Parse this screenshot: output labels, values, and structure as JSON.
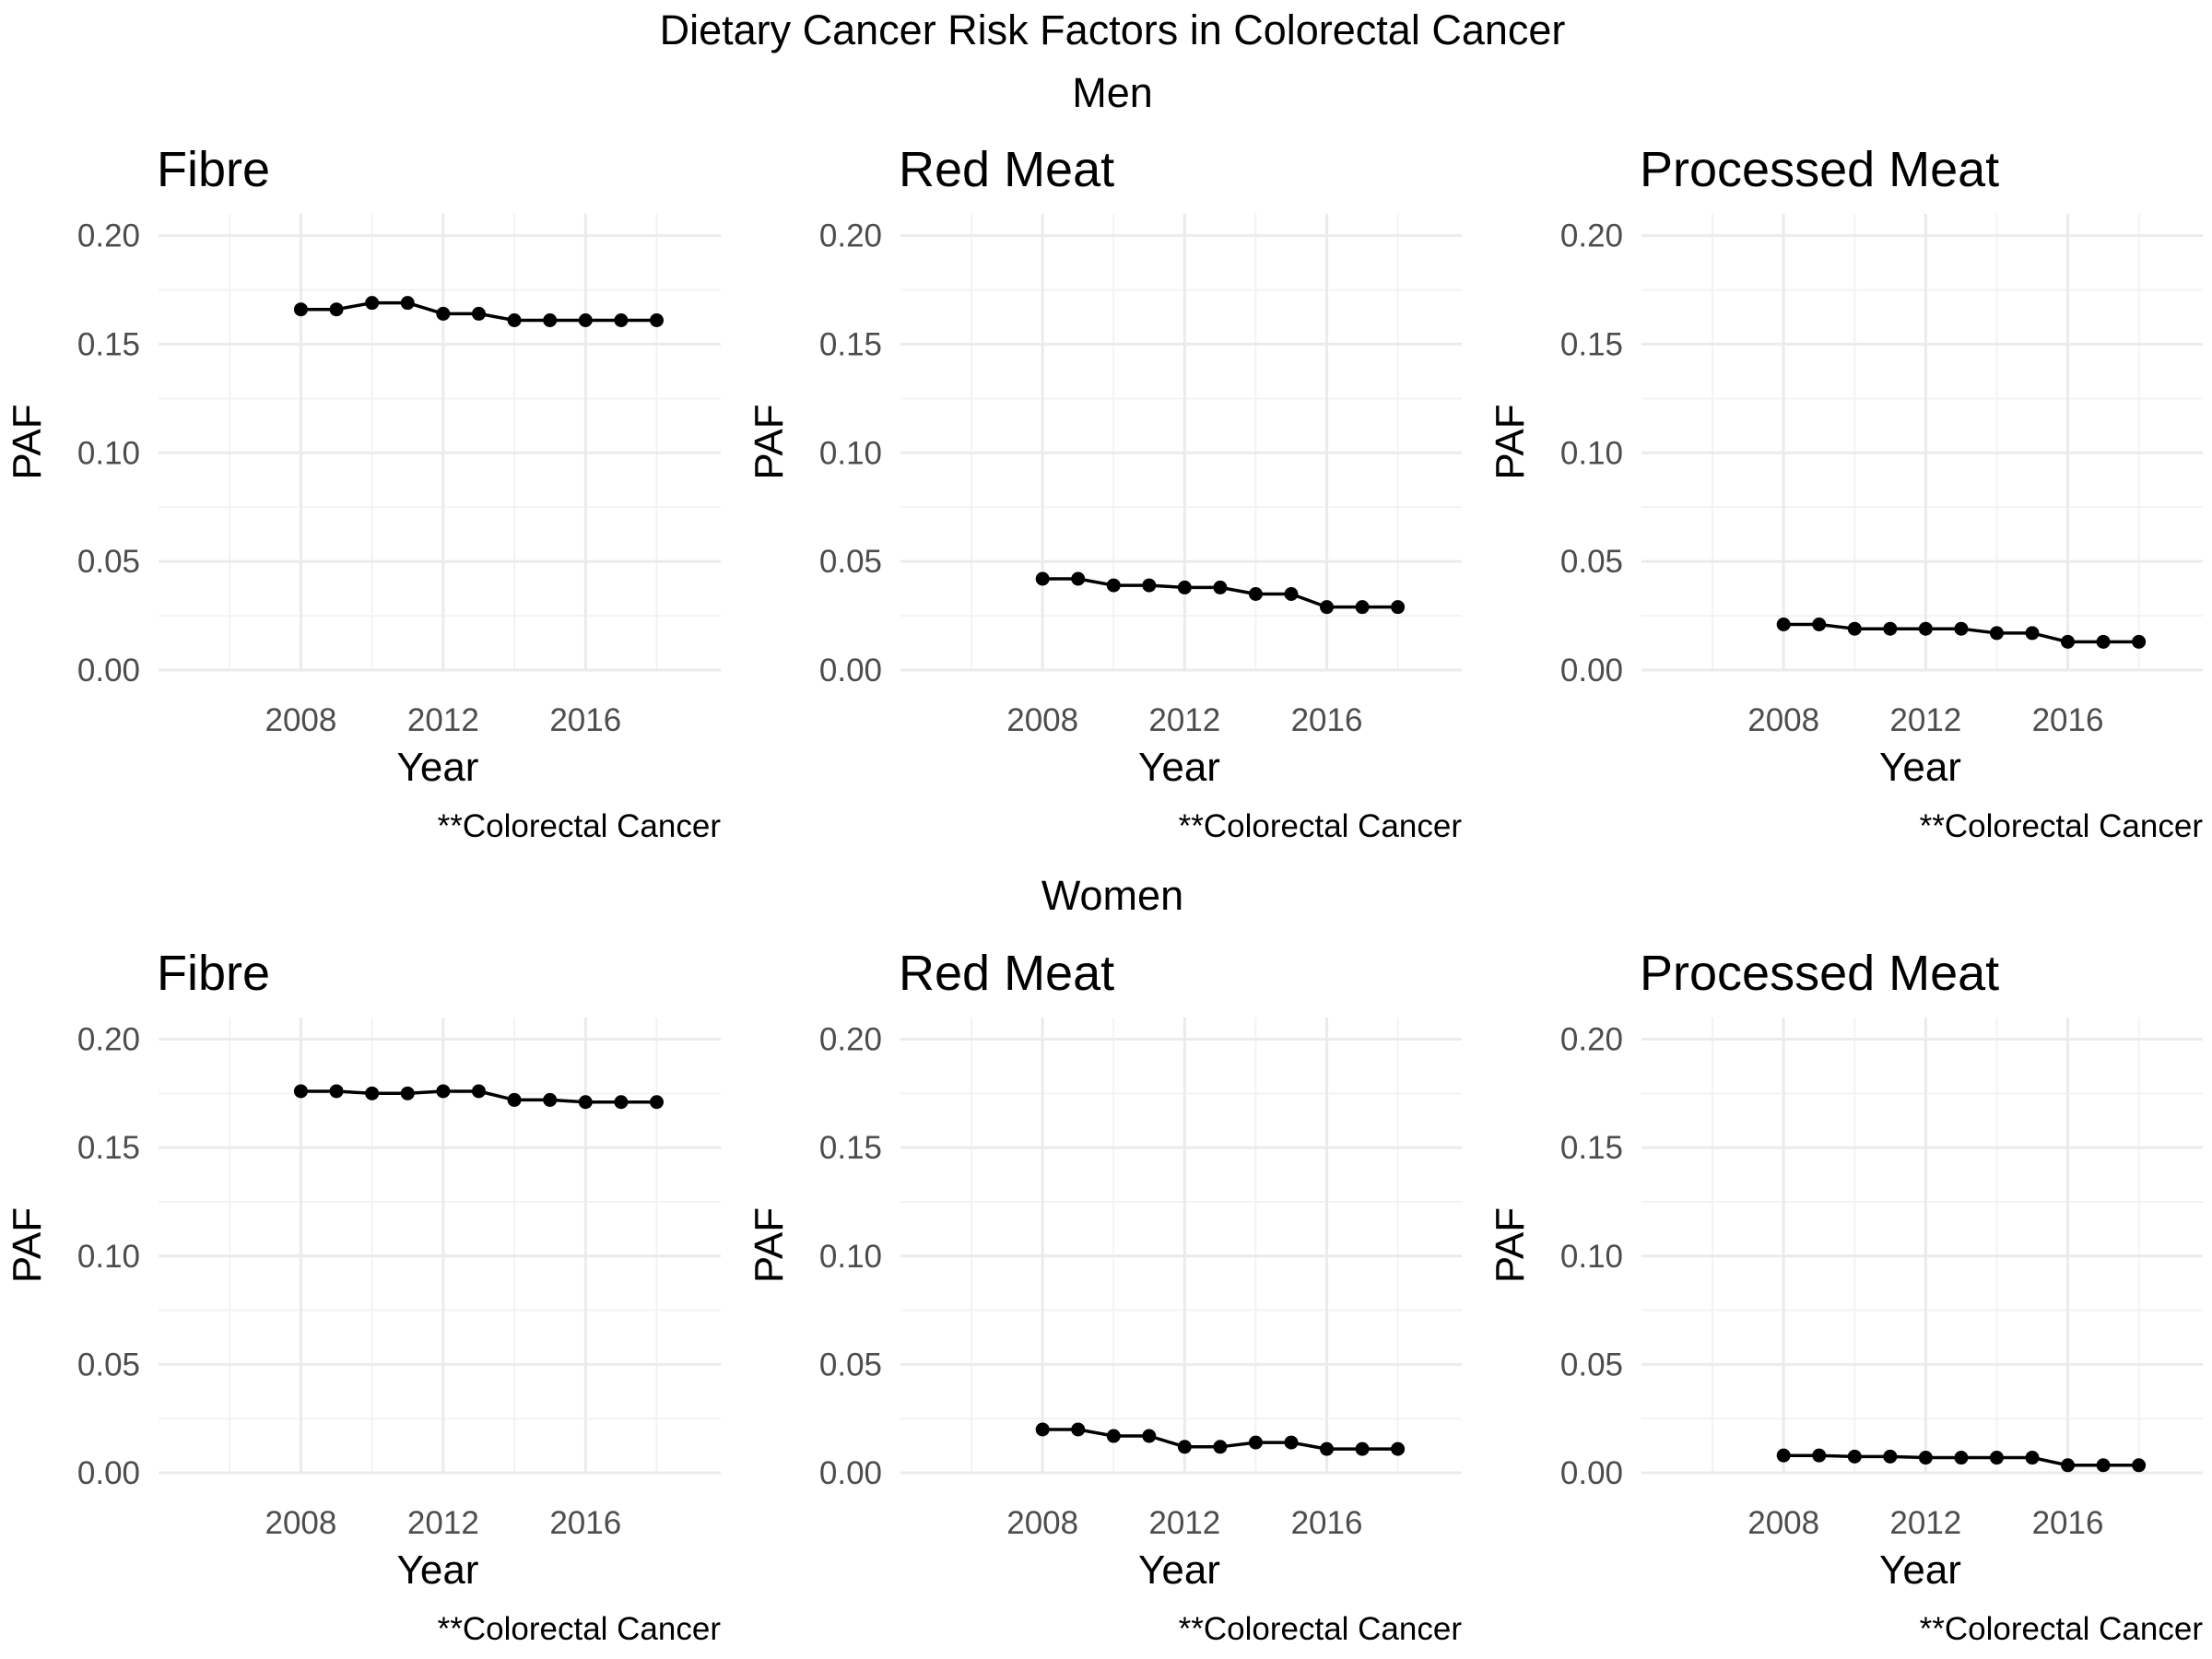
{
  "figure": {
    "title": "Dietary Cancer Risk Factors in Colorectal Cancer",
    "groups": [
      {
        "label": "Men"
      },
      {
        "label": "Women"
      }
    ]
  },
  "chart_data": [
    {
      "type": "line",
      "group": "Men",
      "title": "Fibre",
      "xlabel": "Year",
      "ylabel": "PAF",
      "caption": "**Colorectal Cancer",
      "x": [
        2008,
        2009,
        2010,
        2011,
        2012,
        2013,
        2014,
        2015,
        2016,
        2017,
        2018
      ],
      "values": [
        0.166,
        0.166,
        0.169,
        0.169,
        0.164,
        0.164,
        0.161,
        0.161,
        0.161,
        0.161,
        0.161
      ],
      "xlim": [
        2004,
        2019.8
      ],
      "ylim": [
        0,
        0.21
      ],
      "xticks": [
        2008,
        2012,
        2016
      ],
      "yticks": [
        0.0,
        0.05,
        0.1,
        0.15,
        0.2
      ],
      "xtick_labels": [
        "2008",
        "2012",
        "2016"
      ],
      "ytick_labels": [
        "0.00",
        "0.05",
        "0.10",
        "0.15",
        "0.20"
      ],
      "grid": true
    },
    {
      "type": "line",
      "group": "Men",
      "title": "Red Meat",
      "xlabel": "Year",
      "ylabel": "PAF",
      "caption": "**Colorectal Cancer",
      "x": [
        2008,
        2009,
        2010,
        2011,
        2012,
        2013,
        2014,
        2015,
        2016,
        2017,
        2018
      ],
      "values": [
        0.042,
        0.042,
        0.039,
        0.039,
        0.038,
        0.038,
        0.035,
        0.035,
        0.029,
        0.029,
        0.029
      ],
      "xlim": [
        2004,
        2019.8
      ],
      "ylim": [
        0,
        0.21
      ],
      "xticks": [
        2008,
        2012,
        2016
      ],
      "yticks": [
        0.0,
        0.05,
        0.1,
        0.15,
        0.2
      ],
      "xtick_labels": [
        "2008",
        "2012",
        "2016"
      ],
      "ytick_labels": [
        "0.00",
        "0.05",
        "0.10",
        "0.15",
        "0.20"
      ],
      "grid": true
    },
    {
      "type": "line",
      "group": "Men",
      "title": "Processed Meat",
      "xlabel": "Year",
      "ylabel": "PAF",
      "caption": "**Colorectal Cancer",
      "x": [
        2008,
        2009,
        2010,
        2011,
        2012,
        2013,
        2014,
        2015,
        2016,
        2017,
        2018
      ],
      "values": [
        0.021,
        0.021,
        0.019,
        0.019,
        0.019,
        0.019,
        0.017,
        0.017,
        0.013,
        0.013,
        0.013
      ],
      "xlim": [
        2004,
        2019.8
      ],
      "ylim": [
        0,
        0.21
      ],
      "xticks": [
        2008,
        2012,
        2016
      ],
      "yticks": [
        0.0,
        0.05,
        0.1,
        0.15,
        0.2
      ],
      "xtick_labels": [
        "2008",
        "2012",
        "2016"
      ],
      "ytick_labels": [
        "0.00",
        "0.05",
        "0.10",
        "0.15",
        "0.20"
      ],
      "grid": true
    },
    {
      "type": "line",
      "group": "Women",
      "title": "Fibre",
      "xlabel": "Year",
      "ylabel": "PAF",
      "caption": "**Colorectal Cancer",
      "x": [
        2008,
        2009,
        2010,
        2011,
        2012,
        2013,
        2014,
        2015,
        2016,
        2017,
        2018
      ],
      "values": [
        0.176,
        0.176,
        0.175,
        0.175,
        0.176,
        0.176,
        0.172,
        0.172,
        0.171,
        0.171,
        0.171
      ],
      "xlim": [
        2004,
        2019.8
      ],
      "ylim": [
        0,
        0.21
      ],
      "xticks": [
        2008,
        2012,
        2016
      ],
      "yticks": [
        0.0,
        0.05,
        0.1,
        0.15,
        0.2
      ],
      "xtick_labels": [
        "2008",
        "2012",
        "2016"
      ],
      "ytick_labels": [
        "0.00",
        "0.05",
        "0.10",
        "0.15",
        "0.20"
      ],
      "grid": true
    },
    {
      "type": "line",
      "group": "Women",
      "title": "Red Meat",
      "xlabel": "Year",
      "ylabel": "PAF",
      "caption": "**Colorectal Cancer",
      "x": [
        2008,
        2009,
        2010,
        2011,
        2012,
        2013,
        2014,
        2015,
        2016,
        2017,
        2018
      ],
      "values": [
        0.02,
        0.02,
        0.017,
        0.017,
        0.012,
        0.012,
        0.014,
        0.014,
        0.011,
        0.011,
        0.011
      ],
      "xlim": [
        2004,
        2019.8
      ],
      "ylim": [
        0,
        0.21
      ],
      "xticks": [
        2008,
        2012,
        2016
      ],
      "yticks": [
        0.0,
        0.05,
        0.1,
        0.15,
        0.2
      ],
      "xtick_labels": [
        "2008",
        "2012",
        "2016"
      ],
      "ytick_labels": [
        "0.00",
        "0.05",
        "0.10",
        "0.15",
        "0.20"
      ],
      "grid": true
    },
    {
      "type": "line",
      "group": "Women",
      "title": "Processed Meat",
      "xlabel": "Year",
      "ylabel": "PAF",
      "caption": "**Colorectal Cancer",
      "x": [
        2008,
        2009,
        2010,
        2011,
        2012,
        2013,
        2014,
        2015,
        2016,
        2017,
        2018
      ],
      "values": [
        0.008,
        0.008,
        0.0075,
        0.0075,
        0.007,
        0.007,
        0.007,
        0.007,
        0.0035,
        0.0035,
        0.0035
      ],
      "xlim": [
        2004,
        2019.8
      ],
      "ylim": [
        0,
        0.21
      ],
      "xticks": [
        2008,
        2012,
        2016
      ],
      "yticks": [
        0.0,
        0.05,
        0.1,
        0.15,
        0.2
      ],
      "xtick_labels": [
        "2008",
        "2012",
        "2016"
      ],
      "ytick_labels": [
        "0.00",
        "0.05",
        "0.10",
        "0.15",
        "0.20"
      ],
      "grid": true
    }
  ],
  "colors": {
    "series": "#000000",
    "grid_major": "#ebebeb",
    "grid_minor": "#f3f3f3",
    "tick_text": "#4d4d4d",
    "text": "#000000"
  }
}
